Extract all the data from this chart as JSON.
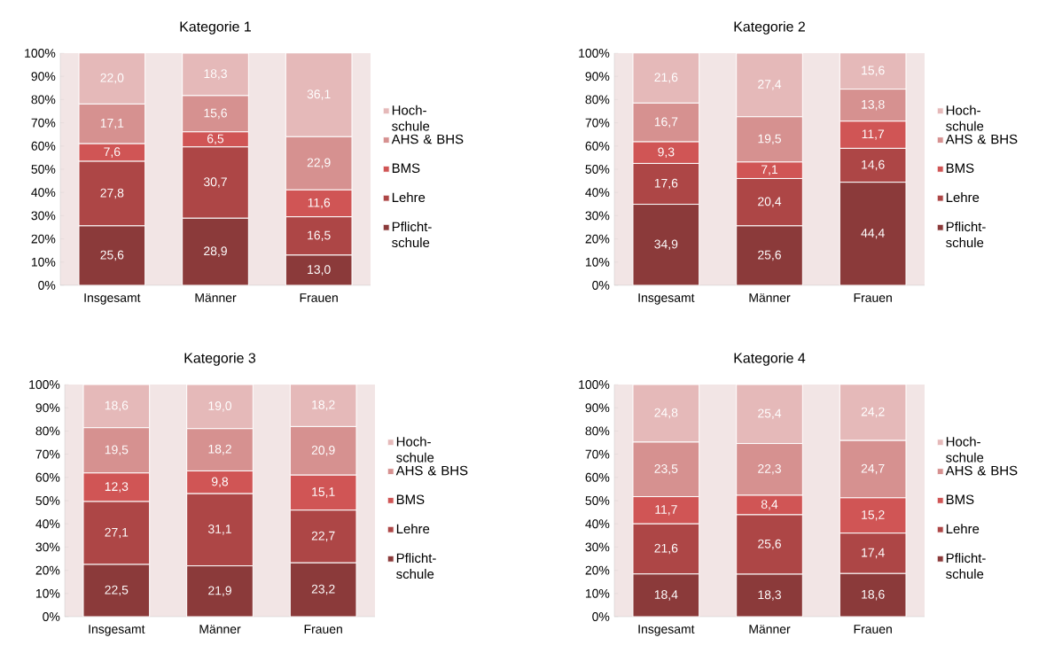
{
  "chart_data": [
    {
      "type": "bar",
      "stacked": true,
      "title": "Kategorie 1",
      "categories": [
        "Insgesamt",
        "Männer",
        "Frauen"
      ],
      "ylim": [
        0,
        100
      ],
      "yticks": [
        {
          "value": 0,
          "label": "0%"
        },
        {
          "value": 10,
          "label": "10%"
        },
        {
          "value": 20,
          "label": "20%"
        },
        {
          "value": 30,
          "label": "30%"
        },
        {
          "value": 40,
          "label": "40%"
        },
        {
          "value": 50,
          "label": "50%"
        },
        {
          "value": 60,
          "label": "60%"
        },
        {
          "value": 70,
          "label": "70%"
        },
        {
          "value": 80,
          "label": "80%"
        },
        {
          "value": 90,
          "label": "90%"
        },
        {
          "value": 100,
          "label": "100%"
        }
      ],
      "legend": "right",
      "series": [
        {
          "name": "Pflicht-schule",
          "color": "#8b3a3a",
          "values": [
            25.6,
            28.9,
            13.0
          ],
          "value_labels": [
            "25,6",
            "28,9",
            "13,0"
          ]
        },
        {
          "name": "Lehre",
          "color": "#ad4646",
          "values": [
            27.8,
            30.7,
            16.5
          ],
          "value_labels": [
            "27,8",
            "30,7",
            "16,5"
          ]
        },
        {
          "name": "BMS",
          "color": "#d05555",
          "values": [
            7.6,
            6.5,
            11.6
          ],
          "value_labels": [
            "7,6",
            "6,5",
            "11,6"
          ]
        },
        {
          "name": "AHS & BHS",
          "color": "#d69190",
          "values": [
            17.1,
            15.6,
            22.9
          ],
          "value_labels": [
            "17,1",
            "15,6",
            "22,9"
          ]
        },
        {
          "name": "Hoch-schule",
          "color": "#e5b9b9",
          "values": [
            22.0,
            18.3,
            36.1
          ],
          "value_labels": [
            "22,0",
            "18,3",
            "36,1"
          ]
        }
      ]
    },
    {
      "type": "bar",
      "stacked": true,
      "title": "Kategorie 2",
      "categories": [
        "Insgesamt",
        "Männer",
        "Frauen"
      ],
      "ylim": [
        0,
        100
      ],
      "yticks": [
        {
          "value": 0,
          "label": "0%"
        },
        {
          "value": 10,
          "label": "10%"
        },
        {
          "value": 20,
          "label": "20%"
        },
        {
          "value": 30,
          "label": "30%"
        },
        {
          "value": 40,
          "label": "40%"
        },
        {
          "value": 50,
          "label": "50%"
        },
        {
          "value": 60,
          "label": "60%"
        },
        {
          "value": 70,
          "label": "70%"
        },
        {
          "value": 80,
          "label": "80%"
        },
        {
          "value": 90,
          "label": "90%"
        },
        {
          "value": 100,
          "label": "100%"
        }
      ],
      "legend": "right",
      "series": [
        {
          "name": "Pflicht-schule",
          "color": "#8b3a3a",
          "values": [
            34.9,
            25.6,
            44.4
          ],
          "value_labels": [
            "34,9",
            "25,6",
            "44,4"
          ]
        },
        {
          "name": "Lehre",
          "color": "#ad4646",
          "values": [
            17.6,
            20.4,
            14.6
          ],
          "value_labels": [
            "17,6",
            "20,4",
            "14,6"
          ]
        },
        {
          "name": "BMS",
          "color": "#d05555",
          "values": [
            9.3,
            7.1,
            11.7
          ],
          "value_labels": [
            "9,3",
            "7,1",
            "11,7"
          ]
        },
        {
          "name": "AHS & BHS",
          "color": "#d69190",
          "values": [
            16.7,
            19.5,
            13.8
          ],
          "value_labels": [
            "16,7",
            "19,5",
            "13,8"
          ]
        },
        {
          "name": "Hoch-schule",
          "color": "#e5b9b9",
          "values": [
            21.6,
            27.4,
            15.6
          ],
          "value_labels": [
            "21,6",
            "27,4",
            "15,6"
          ]
        }
      ]
    },
    {
      "type": "bar",
      "stacked": true,
      "title": "Kategorie 3",
      "categories": [
        "Insgesamt",
        "Männer",
        "Frauen"
      ],
      "ylim": [
        0,
        100
      ],
      "yticks": [
        {
          "value": 0,
          "label": "0%"
        },
        {
          "value": 10,
          "label": "10%"
        },
        {
          "value": 20,
          "label": "20%"
        },
        {
          "value": 30,
          "label": "30%"
        },
        {
          "value": 40,
          "label": "40%"
        },
        {
          "value": 50,
          "label": "50%"
        },
        {
          "value": 60,
          "label": "60%"
        },
        {
          "value": 70,
          "label": "70%"
        },
        {
          "value": 80,
          "label": "80%"
        },
        {
          "value": 90,
          "label": "90%"
        },
        {
          "value": 100,
          "label": "100%"
        }
      ],
      "legend": "right",
      "series": [
        {
          "name": "Pflicht-schule",
          "color": "#8b3a3a",
          "values": [
            22.5,
            21.9,
            23.2
          ],
          "value_labels": [
            "22,5",
            "21,9",
            "23,2"
          ]
        },
        {
          "name": "Lehre",
          "color": "#ad4646",
          "values": [
            27.1,
            31.1,
            22.7
          ],
          "value_labels": [
            "27,1",
            "31,1",
            "22,7"
          ]
        },
        {
          "name": "BMS",
          "color": "#d05555",
          "values": [
            12.3,
            9.8,
            15.1
          ],
          "value_labels": [
            "12,3",
            "9,8",
            "15,1"
          ]
        },
        {
          "name": "AHS & BHS",
          "color": "#d69190",
          "values": [
            19.5,
            18.2,
            20.9
          ],
          "value_labels": [
            "19,5",
            "18,2",
            "20,9"
          ]
        },
        {
          "name": "Hoch-schule",
          "color": "#e5b9b9",
          "values": [
            18.6,
            19.0,
            18.2
          ],
          "value_labels": [
            "18,6",
            "19,0",
            "18,2"
          ]
        }
      ]
    },
    {
      "type": "bar",
      "stacked": true,
      "title": "Kategorie 4",
      "categories": [
        "Insgesamt",
        "Männer",
        "Frauen"
      ],
      "ylim": [
        0,
        100
      ],
      "yticks": [
        {
          "value": 0,
          "label": "0%"
        },
        {
          "value": 10,
          "label": "10%"
        },
        {
          "value": 20,
          "label": "20%"
        },
        {
          "value": 30,
          "label": "30%"
        },
        {
          "value": 40,
          "label": "40%"
        },
        {
          "value": 50,
          "label": "50%"
        },
        {
          "value": 60,
          "label": "60%"
        },
        {
          "value": 70,
          "label": "70%"
        },
        {
          "value": 80,
          "label": "80%"
        },
        {
          "value": 90,
          "label": "90%"
        },
        {
          "value": 100,
          "label": "100%"
        }
      ],
      "legend": "right",
      "series": [
        {
          "name": "Pflicht-schule",
          "color": "#8b3a3a",
          "values": [
            18.4,
            18.3,
            18.6
          ],
          "value_labels": [
            "18,4",
            "18,3",
            "18,6"
          ]
        },
        {
          "name": "Lehre",
          "color": "#ad4646",
          "values": [
            21.6,
            25.6,
            17.4
          ],
          "value_labels": [
            "21,6",
            "25,6",
            "17,4"
          ]
        },
        {
          "name": "BMS",
          "color": "#d05555",
          "values": [
            11.7,
            8.4,
            15.2
          ],
          "value_labels": [
            "11,7",
            "8,4",
            "15,2"
          ]
        },
        {
          "name": "AHS & BHS",
          "color": "#d69190",
          "values": [
            23.5,
            22.3,
            24.7
          ],
          "value_labels": [
            "23,5",
            "22,3",
            "24,7"
          ]
        },
        {
          "name": "Hoch-schule",
          "color": "#e5b9b9",
          "values": [
            24.8,
            25.4,
            24.2
          ],
          "value_labels": [
            "24,8",
            "25,4",
            "24,2"
          ]
        }
      ]
    }
  ]
}
